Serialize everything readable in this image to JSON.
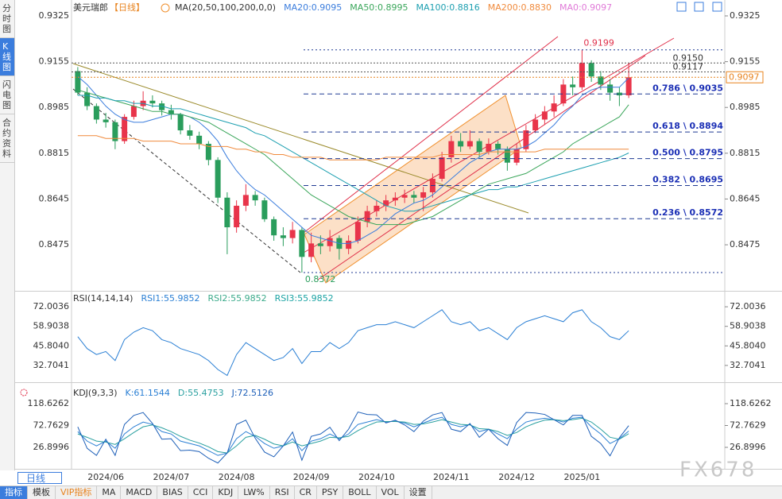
{
  "header": {
    "symbol": "美元瑞郎",
    "period": "【日线】",
    "indicator": "MA(20,50,100,200,0,0)"
  },
  "sidebar": [
    "分时图",
    "K线图",
    "闪电图",
    "合约资料"
  ],
  "chart_data": [
    {
      "type": "candlestick",
      "categories": [
        null,
        null,
        null,
        "2024/06",
        null,
        null,
        null,
        null,
        null,
        null,
        "2024/07",
        null,
        null,
        null,
        null,
        null,
        null,
        "2024/08",
        null,
        null,
        null,
        null,
        null,
        null,
        null,
        "2024/09",
        null,
        null,
        null,
        null,
        null,
        null,
        "2024/10",
        null,
        null,
        null,
        null,
        null,
        null,
        null,
        "2024/11",
        null,
        null,
        null,
        null,
        null,
        null,
        "2024/12",
        null,
        null,
        null,
        null,
        null,
        null,
        "2025/01",
        null,
        null,
        null,
        null,
        null
      ],
      "ohlc": [
        [
          0.912,
          0.9135,
          0.903,
          0.904
        ],
        [
          0.904,
          0.906,
          0.8975,
          0.899
        ],
        [
          0.899,
          0.9,
          0.8925,
          0.894
        ],
        [
          0.894,
          0.8965,
          0.891,
          0.893
        ],
        [
          0.893,
          0.894,
          0.883,
          0.886
        ],
        [
          0.886,
          0.896,
          0.885,
          0.895
        ],
        [
          0.895,
          0.901,
          0.894,
          0.899
        ],
        [
          0.899,
          0.9045,
          0.8975,
          0.901
        ],
        [
          0.901,
          0.903,
          0.8985,
          0.9
        ],
        [
          0.9,
          0.901,
          0.8955,
          0.8975
        ],
        [
          0.8975,
          0.8995,
          0.894,
          0.896
        ],
        [
          0.896,
          0.8965,
          0.8885,
          0.89
        ],
        [
          0.89,
          0.892,
          0.8865,
          0.888
        ],
        [
          0.888,
          0.8895,
          0.883,
          0.885
        ],
        [
          0.885,
          0.886,
          0.877,
          0.879
        ],
        [
          0.879,
          0.88,
          0.863,
          0.865
        ],
        [
          0.865,
          0.867,
          0.844,
          0.854
        ],
        [
          0.854,
          0.864,
          0.852,
          0.862
        ],
        [
          0.862,
          0.87,
          0.86,
          0.866
        ],
        [
          0.866,
          0.8675,
          0.862,
          0.864
        ],
        [
          0.864,
          0.865,
          0.856,
          0.857
        ],
        [
          0.857,
          0.858,
          0.849,
          0.851
        ],
        [
          0.851,
          0.854,
          0.847,
          0.85
        ],
        [
          0.85,
          0.856,
          0.848,
          0.853
        ],
        [
          0.853,
          0.854,
          0.8372,
          0.843
        ],
        [
          0.843,
          0.852,
          0.841,
          0.848
        ],
        [
          0.848,
          0.851,
          0.844,
          0.847
        ],
        [
          0.847,
          0.853,
          0.845,
          0.85
        ],
        [
          0.85,
          0.851,
          0.842,
          0.846
        ],
        [
          0.846,
          0.851,
          0.844,
          0.849
        ],
        [
          0.849,
          0.858,
          0.848,
          0.856
        ],
        [
          0.856,
          0.862,
          0.854,
          0.86
        ],
        [
          0.86,
          0.864,
          0.858,
          0.862
        ],
        [
          0.862,
          0.866,
          0.86,
          0.864
        ],
        [
          0.864,
          0.867,
          0.862,
          0.865
        ],
        [
          0.865,
          0.868,
          0.863,
          0.866
        ],
        [
          0.866,
          0.8675,
          0.863,
          0.865
        ],
        [
          0.865,
          0.869,
          0.86,
          0.867
        ],
        [
          0.867,
          0.874,
          0.865,
          0.872
        ],
        [
          0.872,
          0.882,
          0.871,
          0.88
        ],
        [
          0.88,
          0.888,
          0.878,
          0.886
        ],
        [
          0.886,
          0.889,
          0.882,
          0.884
        ],
        [
          0.884,
          0.89,
          0.883,
          0.886
        ],
        [
          0.886,
          0.887,
          0.88,
          0.882
        ],
        [
          0.882,
          0.887,
          0.881,
          0.885
        ],
        [
          0.885,
          0.886,
          0.881,
          0.883
        ],
        [
          0.883,
          0.884,
          0.875,
          0.878
        ],
        [
          0.878,
          0.885,
          0.877,
          0.883
        ],
        [
          0.883,
          0.892,
          0.882,
          0.89
        ],
        [
          0.89,
          0.896,
          0.889,
          0.894
        ],
        [
          0.894,
          0.899,
          0.892,
          0.897
        ],
        [
          0.897,
          0.903,
          0.895,
          0.9
        ],
        [
          0.9,
          0.909,
          0.899,
          0.907
        ],
        [
          0.907,
          0.91,
          0.903,
          0.906
        ],
        [
          0.906,
          0.9199,
          0.905,
          0.915
        ],
        [
          0.915,
          0.916,
          0.908,
          0.91
        ],
        [
          0.91,
          0.912,
          0.905,
          0.907
        ],
        [
          0.907,
          0.909,
          0.901,
          0.904
        ],
        [
          0.904,
          0.906,
          0.899,
          0.903
        ],
        [
          0.903,
          0.915,
          0.902,
          0.9097
        ]
      ],
      "colors": {
        "up": "#e8344a",
        "down": "#2a9d5c"
      },
      "series": [
        {
          "name": "MA20:0.9095",
          "color": "#3b7ddd",
          "values": [
            0.91,
            0.907,
            0.903,
            0.899,
            0.896,
            0.894,
            0.893,
            0.893,
            0.894,
            0.895,
            0.896,
            0.896,
            0.895,
            0.893,
            0.89,
            0.886,
            0.88,
            0.875,
            0.871,
            0.868,
            0.866,
            0.863,
            0.86,
            0.857,
            0.854,
            0.851,
            0.85,
            0.849,
            0.848,
            0.848,
            0.849,
            0.851,
            0.853,
            0.856,
            0.859,
            0.861,
            0.863,
            0.864,
            0.866,
            0.869,
            0.872,
            0.875,
            0.878,
            0.88,
            0.882,
            0.883,
            0.883,
            0.883,
            0.884,
            0.886,
            0.889,
            0.892,
            0.896,
            0.899,
            0.903,
            0.905,
            0.906,
            0.906,
            0.906,
            0.9095
          ]
        },
        {
          "name": "MA50:0.8995",
          "color": "#3aa65a",
          "values": [
            0.905,
            0.904,
            0.903,
            0.902,
            0.901,
            0.9,
            0.899,
            0.898,
            0.897,
            0.897,
            0.896,
            0.896,
            0.895,
            0.894,
            0.893,
            0.891,
            0.889,
            0.887,
            0.885,
            0.883,
            0.881,
            0.878,
            0.875,
            0.872,
            0.869,
            0.866,
            0.864,
            0.862,
            0.86,
            0.858,
            0.857,
            0.856,
            0.855,
            0.855,
            0.855,
            0.855,
            0.856,
            0.857,
            0.858,
            0.86,
            0.862,
            0.864,
            0.866,
            0.868,
            0.87,
            0.871,
            0.872,
            0.873,
            0.874,
            0.876,
            0.878,
            0.88,
            0.882,
            0.885,
            0.887,
            0.889,
            0.891,
            0.893,
            0.895,
            0.8995
          ]
        },
        {
          "name": "MA100:0.8816",
          "color": "#1c9fb0",
          "values": [
            0.903,
            0.903,
            0.902,
            0.902,
            0.901,
            0.901,
            0.9,
            0.9,
            0.899,
            0.899,
            0.898,
            0.898,
            0.897,
            0.896,
            0.895,
            0.894,
            0.893,
            0.892,
            0.891,
            0.889,
            0.888,
            0.886,
            0.884,
            0.882,
            0.88,
            0.878,
            0.876,
            0.874,
            0.872,
            0.87,
            0.868,
            0.866,
            0.864,
            0.862,
            0.861,
            0.86,
            0.86,
            0.861,
            0.862,
            0.863,
            0.864,
            0.865,
            0.866,
            0.867,
            0.868,
            0.868,
            0.869,
            0.869,
            0.87,
            0.871,
            0.872,
            0.873,
            0.874,
            0.875,
            0.876,
            0.877,
            0.878,
            0.879,
            0.88,
            0.8816
          ]
        },
        {
          "name": "MA200:0.8830",
          "color": "#f08a3c",
          "values": [
            0.888,
            0.888,
            0.888,
            0.887,
            0.887,
            0.887,
            0.887,
            0.886,
            0.886,
            0.886,
            0.886,
            0.885,
            0.885,
            0.885,
            0.884,
            0.884,
            0.884,
            0.883,
            0.883,
            0.882,
            0.882,
            0.881,
            0.881,
            0.88,
            0.88,
            0.88,
            0.88,
            0.879,
            0.879,
            0.879,
            0.879,
            0.879,
            0.879,
            0.88,
            0.88,
            0.88,
            0.88,
            0.88,
            0.88,
            0.881,
            0.881,
            0.881,
            0.881,
            0.881,
            0.882,
            0.882,
            0.882,
            0.882,
            0.882,
            0.882,
            0.883,
            0.883,
            0.883,
            0.883,
            0.883,
            0.883,
            0.883,
            0.883,
            0.883,
            0.883
          ]
        },
        {
          "name": "MA0:0.9097",
          "color": "#e07ad8"
        }
      ],
      "ylim": [
        0.8307,
        0.9384
      ],
      "yticks": [
        0.9325,
        0.9155,
        0.8985,
        0.8815,
        0.8645,
        0.8475
      ],
      "fib_levels": [
        {
          "value": 0.9035,
          "label": "0.786 \\ 0.9035"
        },
        {
          "value": 0.8894,
          "label": "0.618 \\ 0.8894"
        },
        {
          "value": 0.8795,
          "label": "0.500 \\ 0.8795"
        },
        {
          "value": 0.8695,
          "label": "0.382 \\ 0.8695"
        },
        {
          "value": 0.8572,
          "label": "0.236 \\ 0.8572"
        }
      ],
      "price_lines": [
        {
          "value": 0.915,
          "label": "0.9150"
        },
        {
          "value": 0.9117,
          "label": "0.9117"
        }
      ],
      "last_price": {
        "value": 0.9097,
        "label": "0.9097"
      }
    },
    {
      "type": "line",
      "title": "RSI(14,14,14)",
      "series": [
        {
          "name": "RSI1:55.9852",
          "color": "#2a7fd4",
          "values": [
            52,
            44,
            40,
            42,
            36,
            50,
            55,
            58,
            56,
            50,
            48,
            44,
            42,
            40,
            36,
            30,
            26,
            40,
            48,
            44,
            40,
            36,
            38,
            44,
            34,
            42,
            42,
            48,
            44,
            48,
            56,
            58,
            60,
            60,
            62,
            60,
            58,
            62,
            66,
            70,
            62,
            60,
            62,
            56,
            58,
            54,
            50,
            58,
            62,
            64,
            66,
            64,
            62,
            68,
            70,
            62,
            58,
            52,
            50,
            55.9852
          ]
        },
        {
          "name": "RSI2:55.9852",
          "color": "#3aaa8a"
        },
        {
          "name": "RSI3:55.9852",
          "color": "#1aa3a3"
        }
      ],
      "ylim": [
        22.01,
        81.63
      ],
      "yticks": [
        72.0036,
        58.9038,
        {
          "value": 45.804,
          "label": "45.8040"
        },
        32.7041
      ]
    },
    {
      "type": "line",
      "title": "KDJ(9,3,3)",
      "series": [
        {
          "name": "K:61.1544",
          "color": "#2a7fd4",
          "values": [
            60,
            40,
            30,
            40,
            25,
            55,
            70,
            80,
            75,
            60,
            55,
            40,
            35,
            30,
            20,
            10,
            15,
            45,
            60,
            50,
            35,
            25,
            30,
            45,
            20,
            40,
            45,
            55,
            45,
            55,
            75,
            80,
            85,
            80,
            82,
            78,
            70,
            78,
            85,
            90,
            75,
            70,
            75,
            60,
            65,
            55,
            45,
            65,
            80,
            85,
            88,
            85,
            80,
            88,
            90,
            70,
            55,
            35,
            45,
            61.1544
          ]
        },
        {
          "name": "D:55.4753",
          "color": "#2aa0a0",
          "values": [
            55,
            48,
            40,
            38,
            33,
            45,
            58,
            70,
            74,
            68,
            60,
            50,
            42,
            36,
            28,
            18,
            15,
            30,
            48,
            52,
            44,
            34,
            30,
            38,
            30,
            35,
            40,
            48,
            47,
            50,
            62,
            72,
            80,
            81,
            81,
            80,
            75,
            76,
            80,
            85,
            80,
            75,
            74,
            66,
            65,
            60,
            52,
            58,
            70,
            78,
            84,
            85,
            83,
            85,
            88,
            80,
            65,
            48,
            44,
            55.4753
          ]
        },
        {
          "name": "J:72.5126",
          "color": "#1d5fb8",
          "values": [
            70,
            25,
            10,
            44,
            10,
            75,
            94,
            100,
            77,
            44,
            45,
            20,
            21,
            18,
            4,
            -6,
            15,
            75,
            84,
            46,
            17,
            7,
            30,
            59,
            0,
            50,
            55,
            69,
            41,
            65,
            101,
            96,
            95,
            78,
            84,
            74,
            60,
            82,
            95,
            100,
            65,
            60,
            77,
            48,
            65,
            45,
            31,
            79,
            100,
            99,
            96,
            85,
            74,
            94,
            94,
            50,
            35,
            9,
            47,
            72.5126
          ]
        }
      ],
      "ylim": [
        -18.13,
        160.32
      ],
      "yticks": [
        118.6262,
        72.7629,
        26.8996
      ]
    }
  ],
  "toolbar": {
    "period": "日线",
    "tabs": [
      "指标",
      "模板",
      "VIP指标",
      "MA",
      "MACD",
      "BIAS",
      "CCI",
      "KDJ",
      "LW%",
      "RSI",
      "CR",
      "PSY",
      "BOLL",
      "VOL",
      "设置"
    ]
  },
  "watermark": "FX678"
}
